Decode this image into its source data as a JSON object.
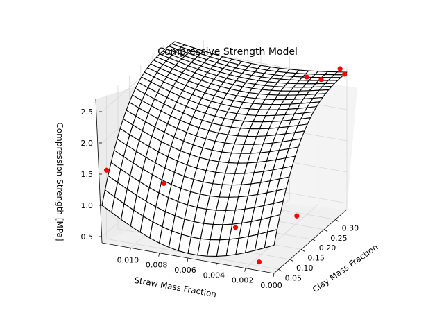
{
  "chart_data": {
    "type": "surface",
    "title": "Compressive Strength Model",
    "xlabel": "Straw Mass Fraction",
    "ylabel": "Clay Mass Fraction",
    "zlabel": "Compression Strength [MPa]",
    "xlim": [
      0.0,
      0.012
    ],
    "ylim": [
      0.03,
      0.35
    ],
    "zlim": [
      0.4,
      2.7
    ],
    "x_ticks": [
      "0.010",
      "0.008",
      "0.006",
      "0.004",
      "0.002",
      "0.000"
    ],
    "y_ticks": [
      "0.05",
      "0.10",
      "0.15",
      "0.20",
      "0.25",
      "0.30"
    ],
    "z_ticks": [
      "0.5",
      "1.0",
      "1.5",
      "2.0",
      "2.5"
    ],
    "grid": true,
    "surface_color": "#000000",
    "points_color": "#ff0000",
    "points": [
      {
        "straw": 0.012,
        "clay": 0.05,
        "strength": 1.5
      },
      {
        "straw": 0.008,
        "clay": 0.05,
        "strength": 1.45
      },
      {
        "straw": 0.003,
        "clay": 0.05,
        "strength": 0.95
      },
      {
        "straw": 0.0012,
        "clay": 0.04,
        "strength": 0.5
      },
      {
        "straw": 0.0,
        "clay": 0.13,
        "strength": 1.0
      },
      {
        "straw": 0.002,
        "clay": 0.3,
        "strength": 2.6
      },
      {
        "straw": 0.001,
        "clay": 0.3,
        "strength": 2.6
      },
      {
        "straw": 0.0,
        "clay": 0.32,
        "strength": 2.75
      },
      {
        "straw": 0.0,
        "clay": 0.34,
        "strength": 2.6
      }
    ]
  }
}
